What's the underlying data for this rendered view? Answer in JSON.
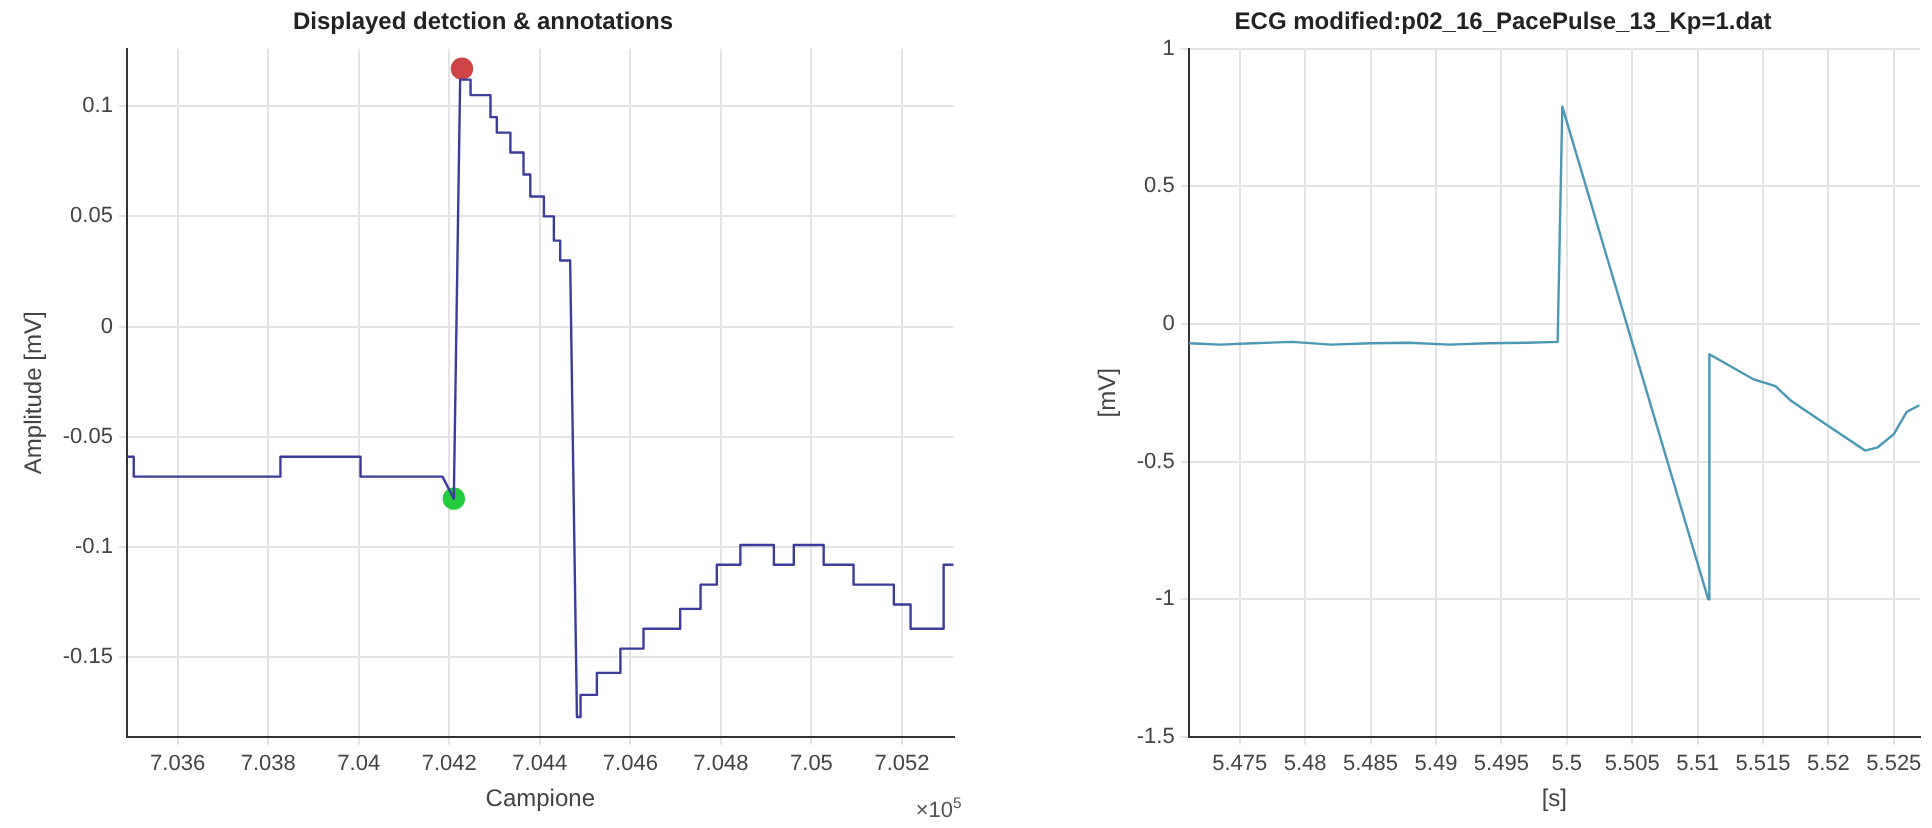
{
  "chart_data": [
    {
      "type": "line",
      "title": "Displayed detction & annotations",
      "xlabel": "Campione",
      "ylabel": "Amplitude [mV]",
      "xlim": [
        7.03488,
        7.05314
      ],
      "xticks": [
        7.036,
        7.038,
        7.04,
        7.042,
        7.044,
        7.046,
        7.048,
        7.05,
        7.052
      ],
      "ylim": [
        -0.186,
        0.126
      ],
      "yticks": [
        -0.15,
        -0.1,
        -0.05,
        0,
        0.05,
        0.1
      ],
      "grid": true,
      "legend": false,
      "annotations": [
        "×10$^{5}$"
      ],
      "series": [
        {
          "color": "#3c3c9c",
          "marker": "none",
          "x": [
            7.03488,
            7.03503,
            7.03503,
            7.03827,
            7.03827,
            7.04004,
            7.04004,
            7.04185,
            7.0421,
            7.04224,
            7.04247,
            7.04247,
            7.04291,
            7.04291,
            7.04305,
            7.04305,
            7.04335,
            7.04335,
            7.04364,
            7.04364,
            7.04379,
            7.04379,
            7.04409,
            7.04409,
            7.04431,
            7.04431,
            7.04445,
            7.04445,
            7.04467,
            7.04482,
            7.0449,
            7.0449,
            7.04526,
            7.04526,
            7.04578,
            7.04578,
            7.04629,
            7.04629,
            7.0471,
            7.0471,
            7.04755,
            7.04755,
            7.04791,
            7.04791,
            7.04843,
            7.04843,
            7.04917,
            7.04917,
            7.04961,
            7.04961,
            7.05027,
            7.05027,
            7.05093,
            7.05093,
            7.05182,
            7.05182,
            7.05219,
            7.05219,
            7.05292,
            7.05292,
            7.05314
          ],
          "values": [
            -0.059,
            -0.059,
            -0.068,
            -0.068,
            -0.059,
            -0.059,
            -0.068,
            -0.068,
            -0.078,
            0.112,
            0.112,
            0.105,
            0.105,
            0.095,
            0.095,
            0.088,
            0.088,
            0.079,
            0.079,
            0.069,
            0.069,
            0.059,
            0.059,
            0.05,
            0.05,
            0.039,
            0.039,
            0.03,
            0.03,
            -0.177,
            -0.177,
            -0.167,
            -0.167,
            -0.157,
            -0.157,
            -0.146,
            -0.146,
            -0.137,
            -0.137,
            -0.128,
            -0.128,
            -0.117,
            -0.117,
            -0.108,
            -0.108,
            -0.099,
            -0.099,
            -0.108,
            -0.108,
            -0.099,
            -0.099,
            -0.108,
            -0.108,
            -0.117,
            -0.117,
            -0.126,
            -0.126,
            -0.137,
            -0.137,
            -0.108,
            -0.108
          ]
        },
        {
          "type": "scatter",
          "color": "#22cc3c",
          "marker": "circle",
          "x": [
            7.0421
          ],
          "values": [
            -0.078
          ]
        },
        {
          "type": "scatter",
          "color": "#cc4444",
          "marker": "circle",
          "x": [
            7.04228
          ],
          "values": [
            0.117
          ]
        }
      ]
    },
    {
      "type": "line",
      "title": "ECG modified:p02_16_PacePulse_13_Kp=1.dat",
      "xlabel": "[s]",
      "ylabel": "[mV]",
      "xlim": [
        5.4711,
        5.527
      ],
      "xticks": [
        5.475,
        5.48,
        5.485,
        5.49,
        5.495,
        5.5,
        5.505,
        5.51,
        5.515,
        5.52,
        5.525
      ],
      "ylim": [
        -1.5,
        1
      ],
      "yticks": [
        -1.5,
        -1,
        -0.5,
        0,
        0.5,
        1
      ],
      "grid": true,
      "legend": false,
      "series": [
        {
          "color": "#4a98b4",
          "marker": "none",
          "x": [
            5.4711,
            5.4735,
            5.476,
            5.479,
            5.482,
            5.485,
            5.488,
            5.491,
            5.494,
            5.497,
            5.4993,
            5.49966,
            5.51081,
            5.5109,
            5.51423,
            5.51595,
            5.51717,
            5.52011,
            5.5228,
            5.52377,
            5.525,
            5.52597,
            5.52695
          ],
          "values": [
            -0.07,
            -0.075,
            -0.07,
            -0.065,
            -0.075,
            -0.07,
            -0.068,
            -0.075,
            -0.07,
            -0.068,
            -0.065,
            0.79,
            -1.0,
            -0.11,
            -0.2,
            -0.226,
            -0.28,
            -0.374,
            -0.46,
            -0.448,
            -0.4,
            -0.32,
            -0.295
          ]
        }
      ]
    }
  ]
}
